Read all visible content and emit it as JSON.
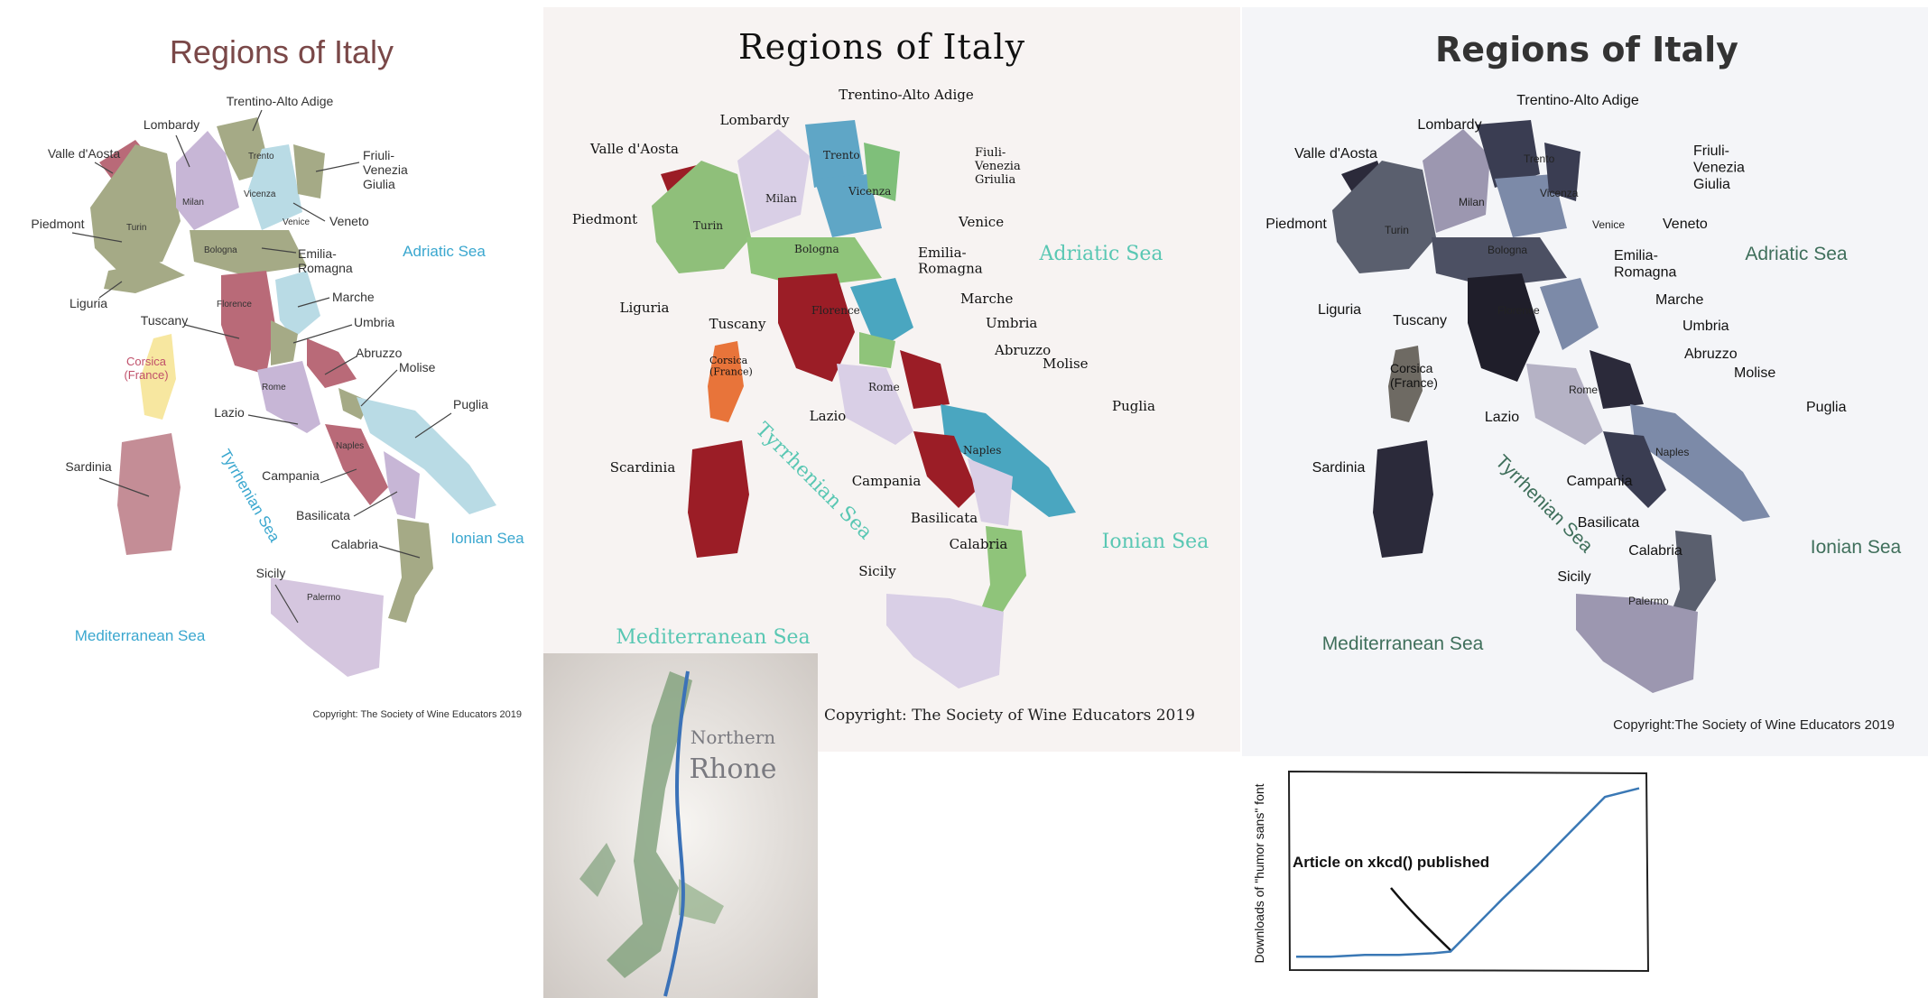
{
  "map_flat": {
    "title": "Regions of Italy",
    "regions": {
      "trentino": "Trentino-Alto Adige",
      "lombardy": "Lombardy",
      "valle": "Valle d'Aosta",
      "friuli": "Friuli-\nVenezia\nGiulia",
      "piedmont": "Piedmont",
      "veneto": "Veneto",
      "emilia": "Emilia-\nRomagna",
      "liguria": "Liguria",
      "marche": "Marche",
      "tuscany": "Tuscany",
      "umbria": "Umbria",
      "abruzzo": "Abruzzo",
      "molise": "Molise",
      "lazio": "Lazio",
      "puglia": "Puglia",
      "sardinia": "Sardinia",
      "campania": "Campania",
      "basilicata": "Basilicata",
      "calabria": "Calabria",
      "sicily": "Sicily",
      "corsica": "Corsica\n(France)"
    },
    "cities": {
      "trento": "Trento",
      "milan": "Milan",
      "vicenza": "Vicenza",
      "turin": "Turin",
      "venice": "Venice",
      "bologna": "Bologna",
      "florence": "Florence",
      "rome": "Rome",
      "naples": "Naples",
      "palermo": "Palermo"
    },
    "seas": {
      "adriatic": "Adriatic Sea",
      "tyrrhenian": "Tyrrhenian Sea",
      "ionian": "Ionian Sea",
      "mediterranean": "Mediterranean Sea"
    },
    "copyright": "Copyright: The Society of Wine Educators 2019"
  },
  "map_painted": {
    "title": "Regions of Italy",
    "regions": {
      "trentino": "Trentino-Alto Adige",
      "lombardy": "Lombardy",
      "valle": "Valle d'Aosta",
      "friuli": "Fiuli-\nVenezia\nGriulia",
      "piedmont": "Piedmont",
      "venice": "Venice",
      "emilia": "Emilia-\nRomagna",
      "liguria": "Liguria",
      "marche": "Marche",
      "tuscany": "Tuscany",
      "umbria": "Umbria",
      "abruzzo": "Abruzzo",
      "molise": "Molise",
      "lazio": "Lazio",
      "puglia": "Puglia",
      "sardinia": "Scardinia",
      "campania": "Campania",
      "basilicata": "Basilicata",
      "calabria": "Calabria",
      "sicily": "Sicily",
      "corsica": "Corsica\n(France)"
    },
    "cities": {
      "trento": "Trento",
      "milan": "Milan",
      "vicenza": "Vicenza",
      "turin": "Turin",
      "bologna": "Bologna",
      "florence": "Florence",
      "rome": "Rome",
      "naples": "Naples"
    },
    "seas": {
      "adriatic": "Adriatic Sea",
      "tyrrhenian": "Tyrrhenian Sea",
      "ionian": "Ionian Sea",
      "mediterranean": "Mediterranean Sea"
    },
    "copyright": "Copyright: The Society of Wine Educators 2019"
  },
  "map_sketch": {
    "title": "Regions of Italy",
    "regions": {
      "trentino": "Trentino-Alto Adige",
      "lombardy": "Lombardy",
      "valle": "Valle d'Aosta",
      "friuli": "Friuli-\nVenezia\nGiulia",
      "piedmont": "Piedmont",
      "veneto": "Veneto",
      "emilia": "Emilia-\nRomagna",
      "liguria": "Liguria",
      "marche": "Marche",
      "tuscany": "Tuscany",
      "umbria": "Umbria",
      "abruzzo": "Abruzzo",
      "molise": "Molise",
      "lazio": "Lazio",
      "puglia": "Puglia",
      "sardinia": "Sardinia",
      "campania": "Campania",
      "basilicata": "Basilicata",
      "calabria": "Calabria",
      "sicily": "Sicily",
      "corsica": "Corsica\n(France)"
    },
    "cities": {
      "trento": "Trento",
      "milan": "Milan",
      "vicenza": "Vicenza",
      "turin": "Turin",
      "venice": "Venice",
      "bologna": "Bologna",
      "florence": "Florence",
      "rome": "Rome",
      "naples": "Naples",
      "palermo": "Palermo"
    },
    "seas": {
      "adriatic": "Adriatic Sea",
      "tyrrhenian": "Tyrrhenian Sea",
      "ionian": "Ionian Sea",
      "mediterranean": "Mediterranean Sea"
    },
    "copyright": "Copyright:The Society of Wine Educators 2019"
  },
  "rhone_map": {
    "title_line1": "Northern",
    "title_line2": "Rhone"
  },
  "xkcd_chart": {
    "annotation": "Article on xkcd() published",
    "chart_data": {
      "type": "line",
      "ylabel": "Downloads of \"humor sans\" font",
      "xlabel": "",
      "series": [
        {
          "x": [
            0,
            10,
            20,
            30,
            40,
            45,
            50,
            60,
            70,
            80,
            90,
            100
          ],
          "y": [
            3,
            3,
            4,
            4,
            5,
            6,
            16,
            36,
            55,
            75,
            95,
            100
          ]
        }
      ],
      "ylim": [
        0,
        105
      ],
      "xlim": [
        0,
        100
      ]
    }
  }
}
